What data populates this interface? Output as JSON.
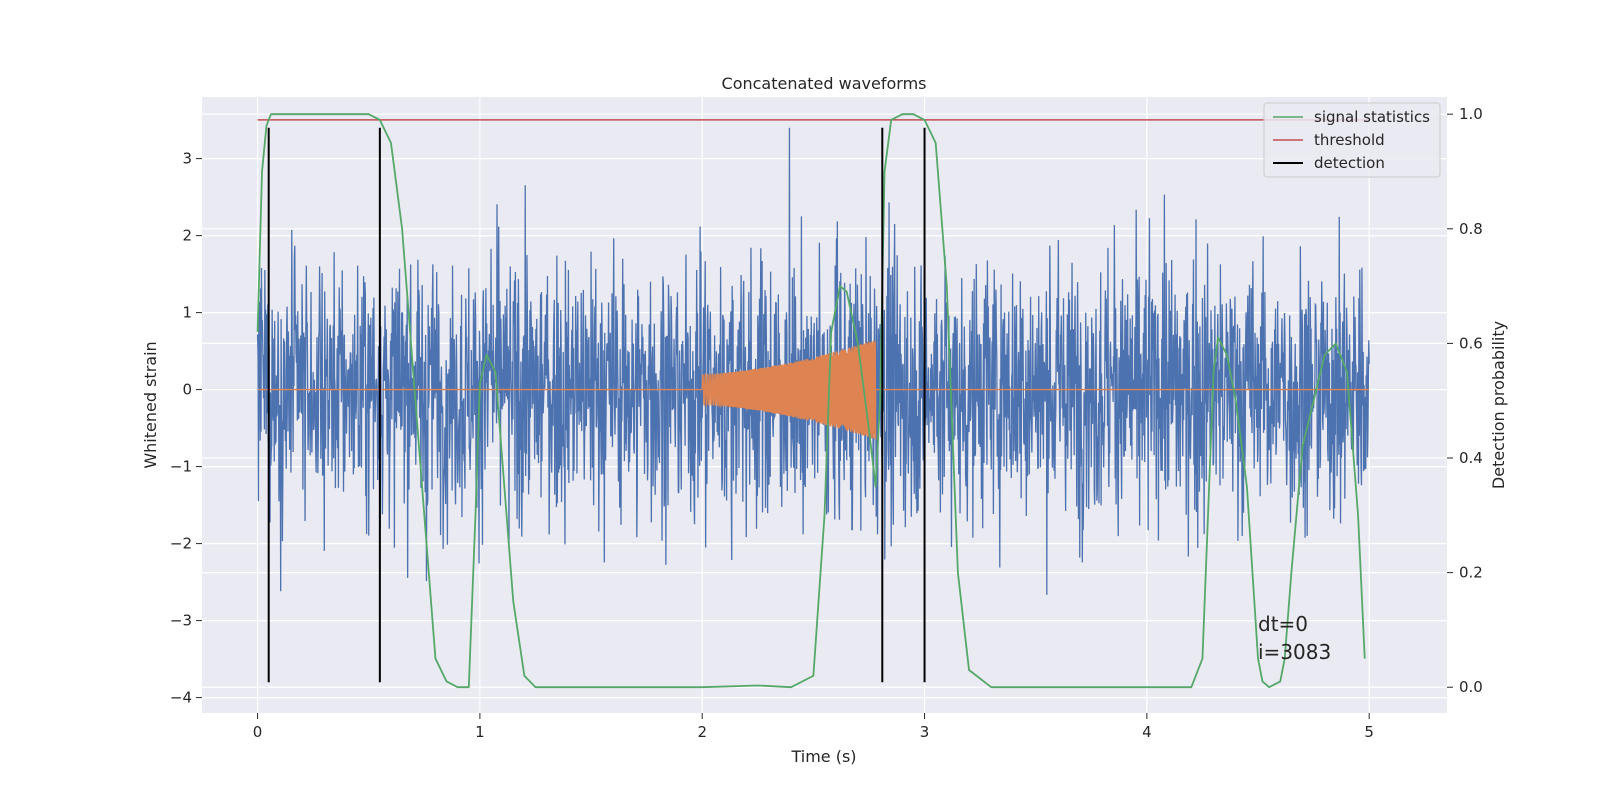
{
  "chart_data": {
    "type": "line",
    "title": "Concatenated waveforms",
    "xlabel": "Time (s)",
    "ylabel": "Whitened strain",
    "y2label": "Detection probability",
    "xlim": [
      -0.25,
      5.35
    ],
    "ylim": [
      -4.2,
      3.8
    ],
    "y2lim": [
      -0.045,
      1.03
    ],
    "x_ticks": [
      0,
      1,
      2,
      3,
      4,
      5
    ],
    "y_ticks": [
      -4,
      -3,
      -2,
      -1,
      0,
      1,
      2,
      3
    ],
    "y2_ticks": [
      0.0,
      0.2,
      0.4,
      0.6,
      0.8,
      1.0
    ],
    "x_tick_labels": [
      "0",
      "1",
      "2",
      "3",
      "4",
      "5"
    ],
    "y_tick_labels": [
      "−4",
      "−3",
      "−2",
      "−1",
      "0",
      "1",
      "2",
      "3"
    ],
    "y2_tick_labels": [
      "0.0",
      "0.2",
      "0.4",
      "0.6",
      "0.8",
      "1.0"
    ],
    "grid": true,
    "legend_position": "top-right",
    "colors": {
      "strain": "#4c72b0",
      "injection": "#dd8452",
      "signal_statistics": "#55a868",
      "threshold": "#c44e52",
      "detection": "#000000",
      "background": "#eaeaf2",
      "grid": "#ffffff"
    },
    "series": [
      {
        "name": "signal statistics",
        "axis": "right",
        "x": [
          0.0,
          0.02,
          0.04,
          0.06,
          0.08,
          0.1,
          0.2,
          0.3,
          0.4,
          0.5,
          0.55,
          0.6,
          0.65,
          0.7,
          0.75,
          0.8,
          0.85,
          0.9,
          0.95,
          0.98,
          1.0,
          1.03,
          1.07,
          1.1,
          1.15,
          1.2,
          1.25,
          1.3,
          1.5,
          2.0,
          2.25,
          2.4,
          2.5,
          2.55,
          2.58,
          2.62,
          2.65,
          2.7,
          2.75,
          2.78,
          2.8,
          2.82,
          2.85,
          2.9,
          2.95,
          3.0,
          3.05,
          3.1,
          3.15,
          3.2,
          3.3,
          3.5,
          4.0,
          4.2,
          4.25,
          4.3,
          4.32,
          4.36,
          4.4,
          4.45,
          4.5,
          4.52,
          4.55,
          4.6,
          4.62,
          4.65,
          4.7,
          4.8,
          4.85,
          4.9,
          4.95,
          4.98
        ],
        "y": [
          0.62,
          0.9,
          0.98,
          1.0,
          1.0,
          1.0,
          1.0,
          1.0,
          1.0,
          1.0,
          0.99,
          0.95,
          0.8,
          0.55,
          0.3,
          0.05,
          0.01,
          0.0,
          0.0,
          0.3,
          0.53,
          0.58,
          0.55,
          0.4,
          0.15,
          0.02,
          0.0,
          0.0,
          0.0,
          0.0,
          0.003,
          0.0,
          0.02,
          0.3,
          0.62,
          0.7,
          0.69,
          0.6,
          0.45,
          0.35,
          0.5,
          0.9,
          0.99,
          1.0,
          1.0,
          0.99,
          0.95,
          0.7,
          0.2,
          0.03,
          0.0,
          0.0,
          0.0,
          0.0,
          0.05,
          0.55,
          0.61,
          0.58,
          0.5,
          0.35,
          0.05,
          0.01,
          0.0,
          0.01,
          0.05,
          0.2,
          0.42,
          0.58,
          0.6,
          0.55,
          0.3,
          0.05
        ]
      },
      {
        "name": "threshold",
        "axis": "right",
        "x": [
          0.0,
          5.0
        ],
        "y": [
          0.99,
          0.99
        ]
      },
      {
        "name": "detection",
        "axis": "left",
        "x": [
          0.05,
          0.55,
          2.81,
          3.0
        ],
        "ymin": -3.8,
        "ymax": 3.4
      }
    ],
    "strain": {
      "x_range": [
        0.0,
        5.0
      ],
      "amplitude_range": [
        -3.8,
        3.4
      ]
    },
    "injection": {
      "x_range": [
        2.0,
        2.78
      ],
      "envelope_start": 0.2,
      "envelope_end": 0.65
    },
    "annotations": [
      "dt=0",
      "i=3083"
    ]
  }
}
